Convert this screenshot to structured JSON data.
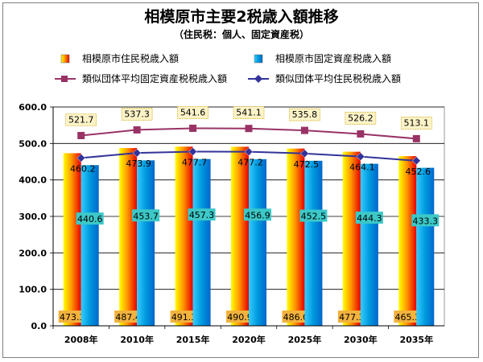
{
  "chart_data": {
    "type": "bar",
    "title": "相模原市主要2税歳入額推移",
    "subtitle": "（住民税：個人、固定資産税）",
    "categories": [
      "2008年",
      "2010年",
      "2015年",
      "2020年",
      "2025年",
      "2030年",
      "2035年"
    ],
    "series": [
      {
        "name": "相模原市住民税歳入額",
        "kind": "bar",
        "color": "#ffcc00",
        "values": [
          473.3,
          487.4,
          491.3,
          490.9,
          486.0,
          477.3,
          465.3
        ]
      },
      {
        "name": "相模原市固定資産税歳入額",
        "kind": "bar",
        "color": "#00b0f0",
        "values": [
          440.6,
          453.7,
          457.3,
          456.9,
          452.5,
          444.3,
          433.3
        ]
      },
      {
        "name": "類似団体平均固定資産税税歳入額",
        "kind": "line",
        "color": "#993366",
        "marker": "square",
        "values": [
          521.7,
          537.3,
          541.6,
          541.1,
          535.8,
          526.2,
          513.1
        ]
      },
      {
        "name": "類似団体平均住民税税歳入額",
        "kind": "line",
        "color": "#333399",
        "marker": "diamond",
        "values": [
          460.2,
          473.9,
          477.7,
          477.2,
          472.5,
          464.1,
          452.6
        ]
      }
    ],
    "ylim": [
      0,
      600
    ],
    "yticks": [
      0,
      100,
      200,
      300,
      400,
      500,
      600
    ],
    "ytick_labels": [
      "0.0",
      "100.0",
      "200.0",
      "300.0",
      "400.0",
      "500.0",
      "600.0"
    ],
    "xlabel": "",
    "ylabel": "",
    "grid": true,
    "legend_position": "top"
  }
}
